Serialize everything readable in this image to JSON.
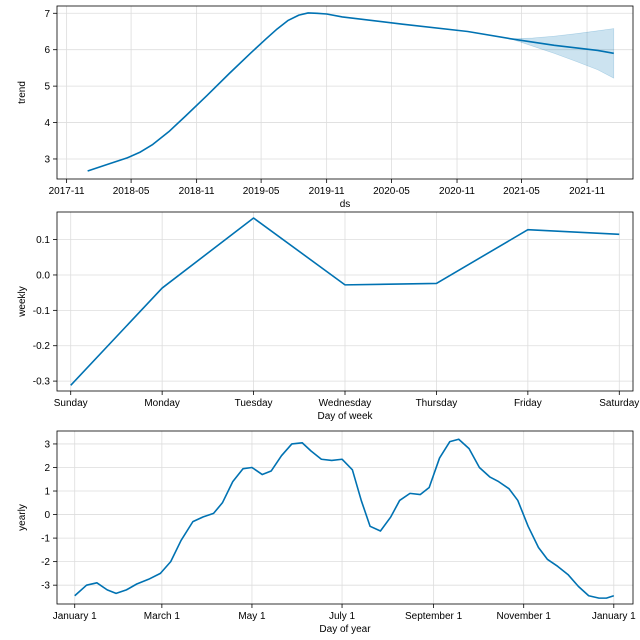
{
  "colors": {
    "line": "#0072B2",
    "band": "#0072B2"
  },
  "chart_data": [
    {
      "type": "line",
      "id": "trend",
      "xlabel": "ds",
      "ylabel": "trend",
      "x_is_date": true,
      "xlim": [
        "2017-10-05",
        "2022-03-10"
      ],
      "ylim": [
        2.45,
        7.2
      ],
      "xticks": [
        "2017-11-01",
        "2018-05-01",
        "2018-11-01",
        "2019-05-01",
        "2019-11-01",
        "2020-05-01",
        "2020-11-01",
        "2021-05-01",
        "2021-11-01"
      ],
      "xtick_labels": [
        "2017-11",
        "2018-05",
        "2018-11",
        "2019-05",
        "2019-11",
        "2020-05",
        "2020-11",
        "2021-05",
        "2021-11"
      ],
      "yticks": [
        3,
        4,
        5,
        6,
        7
      ],
      "ytick_labels": [
        "3",
        "4",
        "5",
        "6",
        "7"
      ],
      "grid": true,
      "series": [
        {
          "x": [
            "2017-12-30",
            "2018-03-01",
            "2018-04-20",
            "2018-05-25",
            "2018-07-01",
            "2018-08-15",
            "2018-10-01",
            "2018-12-01",
            "2019-02-01",
            "2019-04-01",
            "2019-05-15",
            "2019-06-15",
            "2019-07-15",
            "2019-08-15",
            "2019-09-10",
            "2019-10-05",
            "2019-11-01",
            "2019-12-15",
            "2020-06-01",
            "2020-12-01",
            "2021-04-01",
            "2021-08-01",
            "2021-12-01",
            "2022-01-15"
          ],
          "y": [
            2.67,
            2.87,
            3.03,
            3.18,
            3.4,
            3.75,
            4.18,
            4.75,
            5.35,
            5.9,
            6.3,
            6.57,
            6.8,
            6.95,
            7.01,
            7.0,
            6.98,
            6.9,
            6.7,
            6.5,
            6.3,
            6.12,
            5.98,
            5.9
          ]
        }
      ],
      "uncertainty": {
        "x": [
          "2021-04-01",
          "2021-06-01",
          "2021-08-01",
          "2021-10-01",
          "2021-12-01",
          "2022-01-15"
        ],
        "lower": [
          6.3,
          6.1,
          5.9,
          5.68,
          5.45,
          5.22
        ],
        "upper": [
          6.3,
          6.32,
          6.37,
          6.44,
          6.52,
          6.58
        ]
      }
    },
    {
      "type": "line",
      "id": "weekly",
      "xlabel": "Day of week",
      "ylabel": "weekly",
      "categories": [
        "Sunday",
        "Monday",
        "Tuesday",
        "Wednesday",
        "Thursday",
        "Friday",
        "Saturday"
      ],
      "values": [
        -0.312,
        -0.037,
        0.161,
        -0.028,
        -0.024,
        0.128,
        0.115
      ],
      "ylim": [
        -0.328,
        0.178
      ],
      "yticks": [
        -0.3,
        -0.2,
        -0.1,
        0.0,
        0.1
      ],
      "ytick_labels": [
        "-0.3",
        "-0.2",
        "-0.1",
        "0.0",
        "0.1"
      ],
      "grid": true
    },
    {
      "type": "line",
      "id": "yearly",
      "xlabel": "Day of year",
      "ylabel": "yearly",
      "x_is_day_of_year": true,
      "xlim": [
        -12,
        378
      ],
      "ylim": [
        -3.8,
        3.55
      ],
      "xticks": [
        0,
        59,
        120,
        181,
        243,
        304,
        365
      ],
      "xtick_labels": [
        "January 1",
        "March 1",
        "May 1",
        "July 1",
        "September 1",
        "November 1",
        "January 1"
      ],
      "yticks": [
        -3,
        -2,
        -1,
        0,
        1,
        2,
        3
      ],
      "ytick_labels": [
        "-3",
        "-2",
        "-1",
        "0",
        "1",
        "2",
        "3"
      ],
      "grid": true,
      "series": [
        {
          "x": [
            0,
            8,
            15,
            22,
            28,
            35,
            42,
            50,
            58,
            65,
            72,
            80,
            87,
            94,
            100,
            107,
            114,
            120,
            127,
            133,
            140,
            147,
            154,
            160,
            167,
            174,
            181,
            188,
            194,
            200,
            207,
            214,
            220,
            227,
            234,
            240,
            247,
            254,
            260,
            267,
            274,
            281,
            287,
            294,
            300,
            307,
            314,
            320,
            327,
            334,
            341,
            348,
            355,
            360,
            365
          ],
          "y": [
            -3.45,
            -3.0,
            -2.9,
            -3.2,
            -3.35,
            -3.2,
            -2.95,
            -2.75,
            -2.5,
            -2.0,
            -1.1,
            -0.3,
            -0.1,
            0.05,
            0.5,
            1.4,
            1.95,
            2.0,
            1.7,
            1.85,
            2.5,
            3.0,
            3.05,
            2.7,
            2.35,
            2.3,
            2.35,
            1.9,
            0.6,
            -0.5,
            -0.7,
            -0.1,
            0.6,
            0.9,
            0.85,
            1.15,
            2.4,
            3.1,
            3.2,
            2.8,
            2.0,
            1.6,
            1.4,
            1.1,
            0.6,
            -0.5,
            -1.4,
            -1.9,
            -2.2,
            -2.55,
            -3.05,
            -3.45,
            -3.55,
            -3.55,
            -3.45
          ]
        }
      ]
    }
  ]
}
